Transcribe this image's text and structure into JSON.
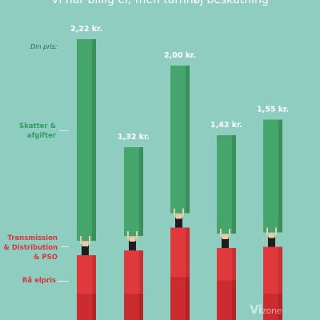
{
  "header": {
    "title": "Vi har billig el, men tårnhøj beskatning"
  },
  "legend": {
    "din_pris": "Din pris:",
    "skatter_l1": "Skatter &",
    "skatter_l2": "afgifter",
    "trans_l1": "Transmission",
    "trans_l2": "& Distribution",
    "trans_l3": "& PSO",
    "raa": "Rå elpris"
  },
  "logo": {
    "main": "Vi",
    "suffix": "zone"
  },
  "colors": {
    "tax": "#45a56b",
    "tax_side": "#3a8f5c",
    "transmission": "#e0393c",
    "transmission_side": "#c83034",
    "raw": "#cc2b2f",
    "raw_side": "#b22428",
    "background": "#8fcdc0"
  },
  "chart_data": {
    "type": "bar",
    "stacked": true,
    "categories": [
      "",
      "",
      "",
      "",
      ""
    ],
    "price_labels": [
      "2,22 kr.",
      "1,32 kr.",
      "2,00 kr.",
      "1,42 kr.",
      "1,55 kr."
    ],
    "totals": [
      2.22,
      1.32,
      2.0,
      1.42,
      1.55
    ],
    "series": [
      {
        "name": "Rå elpris",
        "values": [
          0.22,
          0.22,
          0.36,
          0.33,
          0.22
        ]
      },
      {
        "name": "Transmission & Distribution & PSO",
        "values": [
          0.32,
          0.36,
          0.41,
          0.27,
          0.39
        ]
      },
      {
        "name": "Skatter & afgifter",
        "values": [
          1.68,
          0.74,
          1.23,
          0.82,
          0.94
        ]
      }
    ],
    "ylim": [
      0,
      2.5
    ]
  }
}
